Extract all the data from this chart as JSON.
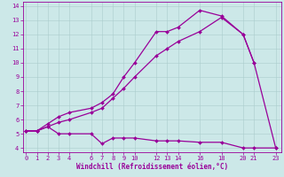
{
  "xlabel": "Windchill (Refroidissement éolien,°C)",
  "line_color": "#990099",
  "background_color": "#cce8e8",
  "grid_color": "#aacccc",
  "lines": [
    {
      "x": [
        0,
        1,
        2,
        3,
        4,
        6,
        7,
        8,
        9,
        10,
        12,
        13,
        14,
        16,
        18,
        20,
        21,
        23
      ],
      "y": [
        5.2,
        5.2,
        5.5,
        5.0,
        5.0,
        5.0,
        4.3,
        4.7,
        4.7,
        4.7,
        4.5,
        4.5,
        4.5,
        4.4,
        4.4,
        4.0,
        4.0,
        4.0
      ]
    },
    {
      "x": [
        0,
        1,
        2,
        3,
        4,
        6,
        7,
        8,
        9,
        10,
        12,
        13,
        14,
        16,
        18,
        20,
        21,
        23
      ],
      "y": [
        5.2,
        5.2,
        5.5,
        5.8,
        6.0,
        6.5,
        6.8,
        7.5,
        8.2,
        9.0,
        10.5,
        11.0,
        11.5,
        12.2,
        13.2,
        12.0,
        10.0,
        4.0
      ]
    },
    {
      "x": [
        0,
        1,
        2,
        3,
        4,
        6,
        7,
        8,
        9,
        10,
        12,
        13,
        14,
        16,
        18,
        20,
        21
      ],
      "y": [
        5.2,
        5.2,
        5.7,
        6.2,
        6.5,
        6.8,
        7.2,
        7.8,
        9.0,
        10.0,
        12.2,
        12.2,
        12.5,
        13.7,
        13.3,
        12.0,
        10.0
      ]
    }
  ],
  "xlim": [
    -0.3,
    23.5
  ],
  "ylim": [
    3.7,
    14.3
  ],
  "xticks": [
    0,
    1,
    2,
    3,
    4,
    6,
    7,
    8,
    9,
    10,
    12,
    13,
    14,
    16,
    18,
    20,
    21,
    23
  ],
  "yticks": [
    4,
    5,
    6,
    7,
    8,
    9,
    10,
    11,
    12,
    13,
    14
  ],
  "marker": "D",
  "markersize": 2,
  "linewidth": 0.9,
  "tick_fontsize": 5,
  "label_fontsize": 5.5
}
